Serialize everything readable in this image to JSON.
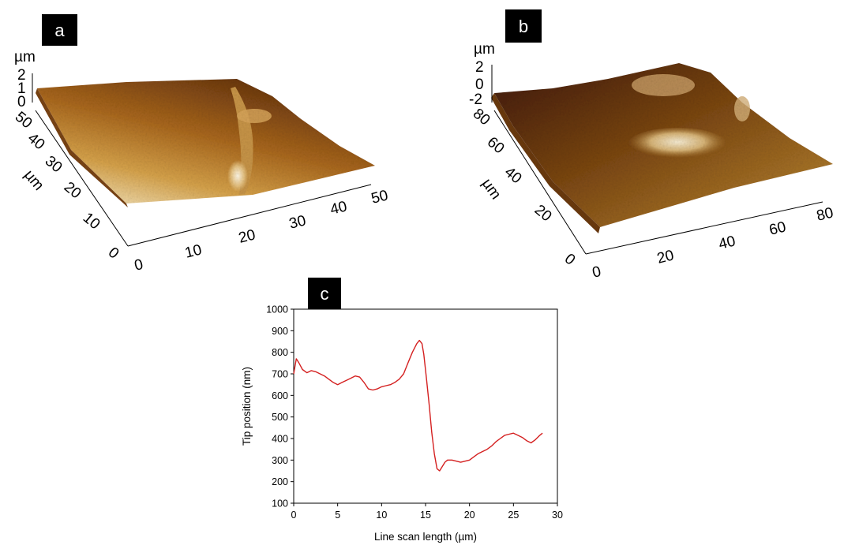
{
  "panels": {
    "a": {
      "label": "a"
    },
    "b": {
      "label": "b"
    },
    "c": {
      "label": "c"
    }
  },
  "colors": {
    "surface_low": "#5a2d0c",
    "surface_mid": "#b97f22",
    "surface_high": "#f2dfb5",
    "line": "#d42020"
  },
  "chart_data": [
    {
      "type": "surface",
      "panel": "a",
      "z_unit": "µm",
      "z_ticks": [
        "2",
        "1",
        "0"
      ],
      "y_label": "µm",
      "y_ticks": [
        "50",
        "40",
        "30",
        "20",
        "10",
        "0"
      ],
      "x_ticks": [
        "0",
        "10",
        "20",
        "30",
        "40",
        "50"
      ],
      "xlim": [
        0,
        50
      ],
      "ylim": [
        0,
        50
      ],
      "zlim": [
        0,
        2
      ]
    },
    {
      "type": "surface",
      "panel": "b",
      "z_unit": "µm",
      "z_ticks": [
        "2",
        "0",
        "-2"
      ],
      "y_label": "µm",
      "y_ticks": [
        "80",
        "60",
        "40",
        "20",
        "0"
      ],
      "x_ticks": [
        "0",
        "20",
        "40",
        "60",
        "80"
      ],
      "xlim": [
        0,
        80
      ],
      "ylim": [
        0,
        80
      ],
      "zlim": [
        -2,
        2
      ]
    },
    {
      "type": "line",
      "panel": "c",
      "xlabel": "Line scan length (µm)",
      "ylabel": "Tip position (nm)",
      "xlim": [
        0,
        30
      ],
      "ylim": [
        100,
        1000
      ],
      "x_ticks": [
        "0",
        "5",
        "10",
        "15",
        "20",
        "25",
        "30"
      ],
      "y_ticks": [
        "100",
        "200",
        "300",
        "400",
        "500",
        "600",
        "700",
        "800",
        "900",
        "1000"
      ],
      "grid": false,
      "series": [
        {
          "x": [
            0,
            0.3,
            0.6,
            1,
            1.5,
            2,
            2.5,
            3,
            3.5,
            4,
            4.5,
            5,
            5.5,
            6,
            6.5,
            7,
            7.5,
            8,
            8.5,
            9,
            9.5,
            10,
            10.5,
            11,
            11.5,
            12,
            12.5,
            13,
            13.5,
            14,
            14.3,
            14.6,
            14.8,
            15.1,
            15.4,
            15.7,
            16,
            16.3,
            16.6,
            16.9,
            17.2,
            17.5,
            18,
            18.5,
            19,
            19.5,
            20,
            20.5,
            21,
            21.5,
            22,
            22.5,
            23,
            23.5,
            24,
            24.5,
            25,
            25.5,
            26,
            26.5,
            27,
            27.5,
            28,
            28.3
          ],
          "y": [
            700,
            770,
            750,
            720,
            705,
            715,
            710,
            700,
            690,
            675,
            660,
            650,
            660,
            670,
            680,
            690,
            685,
            660,
            630,
            625,
            630,
            640,
            645,
            650,
            660,
            675,
            700,
            750,
            800,
            840,
            855,
            840,
            790,
            680,
            560,
            430,
            330,
            260,
            250,
            270,
            290,
            300,
            300,
            295,
            290,
            295,
            300,
            315,
            330,
            340,
            350,
            365,
            385,
            400,
            415,
            420,
            425,
            415,
            405,
            390,
            380,
            395,
            415,
            425
          ]
        }
      ]
    }
  ]
}
